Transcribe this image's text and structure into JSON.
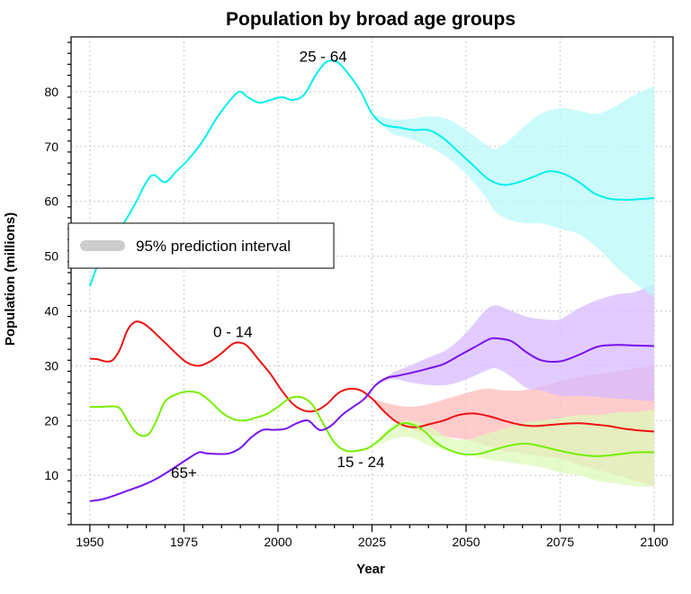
{
  "chart_data": {
    "type": "line",
    "title": "Population by broad age groups",
    "xlabel": "Year",
    "ylabel": "Population (millions)",
    "xlim": [
      1945,
      2105
    ],
    "ylim": [
      1,
      90
    ],
    "x_ticks": [
      1950,
      1975,
      2000,
      2025,
      2050,
      2075,
      2100
    ],
    "y_ticks": [
      10,
      20,
      30,
      40,
      50,
      60,
      70,
      80
    ],
    "grid": true,
    "legend": {
      "placement": "middle-left",
      "entries": [
        {
          "label": "95% prediction interval",
          "color": "#cccccc"
        }
      ]
    },
    "series": [
      {
        "name": "25 - 64",
        "color": "#00eeee",
        "band_color": "#b8f8f8",
        "x": [
          1950,
          1953,
          1956,
          1959,
          1962,
          1965,
          1967,
          1970,
          1973,
          1976,
          1980,
          1984,
          1988,
          1990,
          1992,
          1995,
          1998,
          2001,
          2004,
          2007,
          2010,
          2013,
          2016,
          2019,
          2022,
          2025,
          2028,
          2032,
          2036,
          2040,
          2044,
          2048,
          2052,
          2056,
          2060,
          2064,
          2068,
          2072,
          2076,
          2080,
          2084,
          2088,
          2092,
          2096,
          2100
        ],
        "values": [
          44.5,
          50,
          53,
          56,
          59.5,
          63.5,
          64.8,
          63.5,
          65.5,
          67.5,
          71,
          75.5,
          79,
          80,
          79,
          78,
          78.5,
          79,
          78.5,
          79.5,
          83,
          85.5,
          85.3,
          83,
          80,
          76,
          74,
          73.5,
          73,
          73,
          71.5,
          69,
          66.5,
          64,
          63,
          63.5,
          64.5,
          65.5,
          65,
          63.5,
          61.5,
          60.5,
          60.3,
          60.4,
          60.6
        ],
        "band_x": [
          2025,
          2030,
          2035,
          2040,
          2045,
          2050,
          2055,
          2058,
          2062,
          2066,
          2070,
          2075,
          2080,
          2085,
          2090,
          2095,
          2100
        ],
        "band_upper": [
          76,
          75,
          75,
          75.5,
          75,
          73,
          70.5,
          69.5,
          71.5,
          74,
          76,
          77,
          76.5,
          76,
          77.5,
          79.5,
          81
        ],
        "band_lower": [
          76,
          72.5,
          71.5,
          70,
          68,
          65,
          61,
          58,
          56.5,
          56,
          56,
          55,
          54,
          51.5,
          48,
          45,
          42.5
        ]
      },
      {
        "name": "0 - 14",
        "color": "#ee1111",
        "band_color": "#ffbbbb",
        "x": [
          1950,
          1952,
          1954,
          1956,
          1958,
          1960,
          1962,
          1964,
          1966,
          1968,
          1970,
          1973,
          1976,
          1979,
          1982,
          1985,
          1988,
          1990,
          1992,
          1995,
          1998,
          2001,
          2004,
          2007,
          2010,
          2013,
          2016,
          2019,
          2022,
          2025,
          2028,
          2031,
          2034,
          2037,
          2040,
          2044,
          2048,
          2052,
          2056,
          2060,
          2064,
          2068,
          2072,
          2076,
          2080,
          2084,
          2088,
          2092,
          2096,
          2100
        ],
        "values": [
          31.3,
          31.2,
          30.8,
          31,
          33,
          36.5,
          38,
          37.8,
          36.8,
          35.5,
          34.2,
          32.2,
          30.5,
          30,
          30.8,
          32.3,
          34,
          34.2,
          33.5,
          31,
          28.5,
          25.5,
          23,
          21.8,
          21.8,
          23,
          25,
          25.8,
          25.5,
          24,
          21.8,
          20,
          19,
          18.8,
          19.3,
          20,
          21,
          21.3,
          20.8,
          20,
          19.3,
          19,
          19.2,
          19.4,
          19.5,
          19.3,
          19,
          18.5,
          18.2,
          18
        ]
      },
      {
        "name": "15 - 24",
        "color": "#77ee00",
        "band_color": "#ddfabb",
        "x": [
          1950,
          1953,
          1956,
          1958,
          1960,
          1962,
          1964,
          1966,
          1968,
          1970,
          1973,
          1976,
          1979,
          1982,
          1985,
          1988,
          1991,
          1994,
          1997,
          2000,
          2003,
          2006,
          2009,
          2012,
          2015,
          2018,
          2021,
          2024,
          2027,
          2030,
          2033,
          2036,
          2039,
          2042,
          2046,
          2050,
          2054,
          2058,
          2062,
          2066,
          2070,
          2075,
          2080,
          2085,
          2090,
          2095,
          2100
        ],
        "values": [
          22.5,
          22.5,
          22.6,
          22.2,
          20,
          18,
          17.2,
          17.8,
          20.5,
          23.5,
          24.8,
          25.3,
          25,
          23.5,
          21.5,
          20.3,
          20,
          20.5,
          21.2,
          22.5,
          24,
          24.3,
          23,
          19.5,
          16,
          14.5,
          14.5,
          15,
          16.5,
          18.3,
          19.5,
          19.2,
          18,
          16,
          14.5,
          13.8,
          14,
          14.8,
          15.5,
          15.8,
          15.3,
          14.5,
          13.8,
          13.5,
          13.8,
          14.2,
          14.2
        ]
      },
      {
        "name": "65+",
        "color": "#7711ee",
        "band_color": "#d8bbff",
        "x": [
          1950,
          1953,
          1956,
          1960,
          1964,
          1968,
          1972,
          1976,
          1979,
          1981,
          1984,
          1987,
          1990,
          1993,
          1996,
          1999,
          2002,
          2005,
          2008,
          2011,
          2014,
          2017,
          2020,
          2023,
          2026,
          2029,
          2032,
          2036,
          2040,
          2044,
          2048,
          2052,
          2056,
          2058,
          2062,
          2066,
          2070,
          2075,
          2080,
          2085,
          2090,
          2095,
          2100
        ],
        "values": [
          5.3,
          5.6,
          6.2,
          7.2,
          8.2,
          9.5,
          11.2,
          13,
          14.2,
          14,
          13.9,
          14,
          15,
          17,
          18.3,
          18.3,
          18.5,
          19.5,
          20,
          18.3,
          19,
          21,
          22.5,
          24,
          26.5,
          27.8,
          28.2,
          28.8,
          29.5,
          30.3,
          31.8,
          33.3,
          34.8,
          35,
          34.5,
          32.5,
          31,
          30.8,
          32,
          33.5,
          33.8,
          33.7,
          33.6
        ],
        "band_x": [
          2025,
          2030,
          2035,
          2040,
          2045,
          2050,
          2055,
          2058,
          2062,
          2066,
          2070,
          2075,
          2080,
          2085,
          2090,
          2095,
          2100
        ]
      }
    ],
    "bands": [
      {
        "series": "0 - 14",
        "x": [
          2025,
          2030,
          2035,
          2040,
          2045,
          2050,
          2055,
          2060,
          2065,
          2070,
          2075,
          2080,
          2085,
          2090,
          2095,
          2100
        ],
        "upper": [
          24,
          23,
          22.5,
          23,
          24,
          25,
          25.8,
          25.5,
          25.5,
          26.3,
          27.2,
          28,
          28.5,
          29,
          29.5,
          30
        ],
        "lower": [
          24,
          20.5,
          18.5,
          17.5,
          17,
          16.5,
          15.5,
          14.5,
          14,
          13.5,
          13,
          12,
          11,
          10,
          9,
          8
        ]
      },
      {
        "series": "15 - 24",
        "x": [
          2025,
          2030,
          2035,
          2040,
          2045,
          2050,
          2055,
          2060,
          2065,
          2070,
          2075,
          2080,
          2085,
          2090,
          2095,
          2100
        ],
        "upper": [
          15,
          19,
          20,
          19,
          17,
          16.5,
          17.5,
          18.5,
          19.5,
          20,
          20.5,
          21,
          21,
          21.5,
          21.5,
          22
        ],
        "lower": [
          15,
          16.5,
          17,
          15.5,
          14.5,
          14,
          13,
          12.5,
          12,
          11.5,
          10.5,
          10,
          9,
          8.5,
          8,
          8
        ]
      },
      {
        "series": "65+",
        "x": [
          2025,
          2030,
          2035,
          2040,
          2045,
          2050,
          2055,
          2058,
          2062,
          2066,
          2070,
          2075,
          2080,
          2085,
          2090,
          2095,
          2100
        ],
        "upper": [
          26,
          28.5,
          30,
          31.5,
          33,
          36,
          40,
          41,
          40,
          39,
          38.5,
          38.5,
          40.5,
          42,
          43,
          43.5,
          45
        ],
        "lower": [
          26,
          27.5,
          27,
          26.5,
          26.5,
          27.5,
          29,
          29.5,
          28,
          26,
          25.5,
          24.5,
          24.5,
          24.3,
          24,
          23.8,
          23.5
        ]
      },
      {
        "series": "25 - 64",
        "x": [
          2025,
          2030,
          2035,
          2040,
          2045,
          2050,
          2055,
          2058,
          2062,
          2066,
          2070,
          2075,
          2080,
          2085,
          2090,
          2095,
          2100
        ],
        "upper": [
          76,
          75,
          75,
          75.5,
          75,
          73,
          70.5,
          69.5,
          71.5,
          74,
          76,
          77,
          76.5,
          76,
          77.5,
          79.5,
          81
        ],
        "lower": [
          76,
          72.5,
          71.5,
          70,
          68,
          65,
          61,
          58,
          56.5,
          56,
          56,
          55,
          54,
          51.5,
          48,
          45,
          42.5
        ]
      }
    ],
    "annotations": [
      {
        "text": "25 - 64",
        "series": "25 - 64",
        "x": 2012,
        "y": 85.5
      },
      {
        "text": "0 - 14",
        "series": "0 - 14",
        "x": 1988,
        "y": 35.2
      },
      {
        "text": "15 - 24",
        "series": "15 - 24",
        "x": 2022,
        "y": 11.5
      },
      {
        "text": "65+",
        "series": "65+",
        "x": 1975,
        "y": 9.5
      }
    ]
  }
}
